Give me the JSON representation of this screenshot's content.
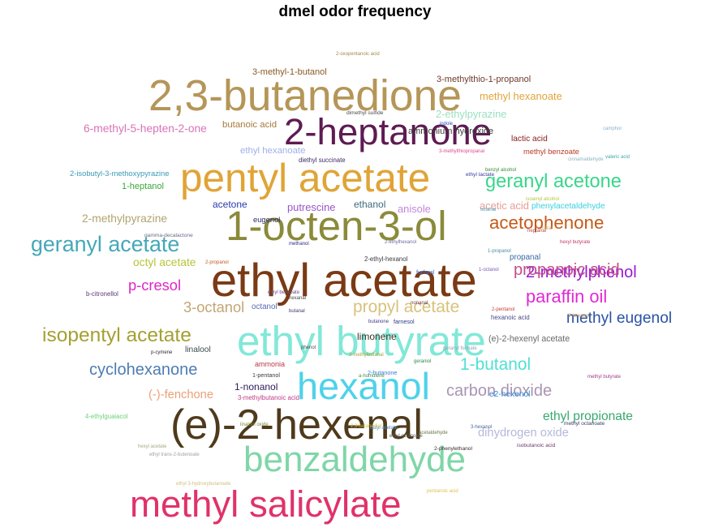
{
  "chart_data": {
    "type": "wordcloud",
    "title": "dmel odor frequency",
    "words": [
      {
        "text": "ethyl acetate",
        "weight": 100,
        "color": "#7a3a14"
      },
      {
        "text": "2,3-butanedione",
        "weight": 92,
        "color": "#b59658"
      },
      {
        "text": "(e)-2-hexenal",
        "weight": 90,
        "color": "#4f3a1c"
      },
      {
        "text": "ethyl butyrate",
        "weight": 88,
        "color": "#82e8d8"
      },
      {
        "text": "1-octen-3-ol",
        "weight": 88,
        "color": "#8a8a3a"
      },
      {
        "text": "pentyl acetate",
        "weight": 85,
        "color": "#e0a436"
      },
      {
        "text": "hexanol",
        "weight": 80,
        "color": "#4fd2ea"
      },
      {
        "text": "2-heptanone",
        "weight": 78,
        "color": "#5e1b52"
      },
      {
        "text": "benzaldehyde",
        "weight": 75,
        "color": "#7fd6a8"
      },
      {
        "text": "methyl salicylate",
        "weight": 78,
        "color": "#e0326a"
      },
      {
        "text": "geranyl acetate",
        "weight": 55,
        "color": "#44a8b8"
      },
      {
        "text": "isopentyl acetate",
        "weight": 50,
        "color": "#a4a034"
      },
      {
        "text": "geranyl acetone",
        "weight": 48,
        "color": "#38d68a"
      },
      {
        "text": "acetophenone",
        "weight": 45,
        "color": "#c65a18"
      },
      {
        "text": "paraffin oil",
        "weight": 44,
        "color": "#e028d4"
      },
      {
        "text": "propyl acetate",
        "weight": 42,
        "color": "#d8c27a"
      },
      {
        "text": "carbon dioxide",
        "weight": 40,
        "color": "#aa94b4"
      },
      {
        "text": "cyclohexanone",
        "weight": 40,
        "color": "#4e7cb4"
      },
      {
        "text": "2-methylphenol",
        "weight": 40,
        "color": "#9a18d2"
      },
      {
        "text": "1-butanol",
        "weight": 42,
        "color": "#52e0d4"
      },
      {
        "text": "propanoic acid",
        "weight": 38,
        "color": "#c44e86"
      },
      {
        "text": "methyl eugenol",
        "weight": 36,
        "color": "#2852a4"
      },
      {
        "text": "3-octanol",
        "weight": 34,
        "color": "#c2a674"
      },
      {
        "text": "p-cresol",
        "weight": 34,
        "color": "#de26c6"
      },
      {
        "text": "ethyl propionate",
        "weight": 28,
        "color": "#38a86e"
      },
      {
        "text": "dihydrogen oxide",
        "weight": 26,
        "color": "#b4b8da"
      },
      {
        "text": "(-)-fenchone",
        "weight": 26,
        "color": "#eaa078"
      },
      {
        "text": "6-methyl-5-hepten-2-one",
        "weight": 24,
        "color": "#d874b8"
      },
      {
        "text": "2-methylpyrazine",
        "weight": 24,
        "color": "#b0a470"
      },
      {
        "text": "octyl acetate",
        "weight": 24,
        "color": "#b8c43a"
      },
      {
        "text": "methyl hexanoate",
        "weight": 22,
        "color": "#e0a43a"
      },
      {
        "text": "2-ethylpyrazine",
        "weight": 22,
        "color": "#9ce0c0"
      },
      {
        "text": "putrescine",
        "weight": 22,
        "color": "#9856c8"
      },
      {
        "text": "anisole",
        "weight": 22,
        "color": "#c486da"
      },
      {
        "text": "acetic acid",
        "weight": 22,
        "color": "#e89c96"
      },
      {
        "text": "ethanol",
        "weight": 20,
        "color": "#3c6a7a"
      },
      {
        "text": "acetone",
        "weight": 20,
        "color": "#2a3aaa"
      },
      {
        "text": "limonene",
        "weight": 20,
        "color": "#3a3424"
      },
      {
        "text": "1-nonanol",
        "weight": 20,
        "color": "#2a1a5a"
      },
      {
        "text": "butanoic acid",
        "weight": 18,
        "color": "#a87a3a"
      },
      {
        "text": "ethyl hexanoate",
        "weight": 18,
        "color": "#a0b0e8"
      },
      {
        "text": "ammonium hydroxide",
        "weight": 17,
        "color": "#3a3a3a"
      },
      {
        "text": "3-methyl-1-butanol",
        "weight": 17,
        "color": "#8a5a24"
      },
      {
        "text": "3-methylthio-1-propanol",
        "weight": 17,
        "color": "#6e3a2a"
      },
      {
        "text": "1-heptanol",
        "weight": 17,
        "color": "#3aa83a"
      },
      {
        "text": "(e)-2-hexenyl acetate",
        "weight": 16,
        "color": "#6a6a6a"
      },
      {
        "text": "e2-hexenol",
        "weight": 15,
        "color": "#2a8ad0"
      },
      {
        "text": "phenylacetaldehyde",
        "weight": 15,
        "color": "#3ad0e0"
      },
      {
        "text": "lactic acid",
        "weight": 15,
        "color": "#8a1a1a"
      },
      {
        "text": "linalool",
        "weight": 15,
        "color": "#3a4a4a"
      },
      {
        "text": "octanol",
        "weight": 14,
        "color": "#5a6ab4"
      },
      {
        "text": "propanal",
        "weight": 14,
        "color": "#3a6aa4"
      },
      {
        "text": "methyl benzoate",
        "weight": 13,
        "color": "#b83a24"
      },
      {
        "text": "2-isobutyl-3-methoxypyrazine",
        "weight": 13,
        "color": "#3a9ab4"
      },
      {
        "text": "eugenol",
        "weight": 13,
        "color": "#2a2a6a"
      },
      {
        "text": "ammonia",
        "weight": 12,
        "color": "#b83a4a"
      },
      {
        "text": "3-methylbutanoic acid",
        "weight": 11,
        "color": "#c23a8a"
      },
      {
        "text": "2-ethyl-hexanol",
        "weight": 11,
        "color": "#3a3a3a"
      },
      {
        "text": "diethyl succinate",
        "weight": 11,
        "color": "#3a2a6a"
      },
      {
        "text": "hexanoic acid",
        "weight": 11,
        "color": "#4a4a8a"
      },
      {
        "text": "b-citronellol",
        "weight": 11,
        "color": "#5a3a7a"
      },
      {
        "text": "4-ethylguaiacol",
        "weight": 11,
        "color": "#6ad07a"
      },
      {
        "text": "1-pentanol",
        "weight": 10,
        "color": "#3a3a3a"
      },
      {
        "text": "2-butanone",
        "weight": 10,
        "color": "#3a7ad0"
      },
      {
        "text": "furfural",
        "weight": 10,
        "color": "#3a6ad0"
      },
      {
        "text": "farnesol",
        "weight": 10,
        "color": "#2a3a8a"
      },
      {
        "text": "dimethyl sulfide",
        "weight": 9,
        "color": "#4a4a4a"
      },
      {
        "text": "2-phenylethanol",
        "weight": 9,
        "color": "#3a2a2a"
      },
      {
        "text": "gamma-decalactone",
        "weight": 9,
        "color": "#6a6a8a"
      },
      {
        "text": "methyl octanoate",
        "weight": 9,
        "color": "#3a3a6a"
      },
      {
        "text": "isobutanoic acid",
        "weight": 9,
        "color": "#6a3a6a"
      },
      {
        "text": "ethyl lactate",
        "weight": 9,
        "color": "#3a3aa0"
      },
      {
        "text": "geranyl formate",
        "weight": 8,
        "color": "#9a9ab4"
      },
      {
        "text": "ethyl 3-hydroxybutanoate",
        "weight": 8,
        "color": "#d0c080"
      },
      {
        "text": "pentanoic acid",
        "weight": 8,
        "color": "#e0c04a"
      },
      {
        "text": "hexyl butyrate",
        "weight": 8,
        "color": "#c23a6a"
      },
      {
        "text": "hexyl acetate",
        "weight": 8,
        "color": "#a8a880"
      },
      {
        "text": "cinnamaldehyde",
        "weight": 8,
        "color": "#8ab4c4"
      },
      {
        "text": "valeric acid",
        "weight": 8,
        "color": "#3aa8a8"
      },
      {
        "text": "ethyl benzoate",
        "weight": 8,
        "color": "#6a4a8a"
      },
      {
        "text": "butyl acetate",
        "weight": 8,
        "color": "#4a8ad0"
      },
      {
        "text": "isoamyl alcohol",
        "weight": 8,
        "color": "#b4c43a"
      },
      {
        "text": "methanol",
        "weight": 8,
        "color": "#2a2a8a"
      },
      {
        "text": "butanal",
        "weight": 8,
        "color": "#3a3a6a"
      },
      {
        "text": "hexanal",
        "weight": 8,
        "color": "#4a4a4a"
      },
      {
        "text": "geraniol",
        "weight": 8,
        "color": "#2a8a4a"
      },
      {
        "text": "p-cymene",
        "weight": 8,
        "color": "#2a2a2a"
      },
      {
        "text": "butanone",
        "weight": 8,
        "color": "#3a3a8a"
      },
      {
        "text": "nonanal",
        "weight": 8,
        "color": "#6a3a3a"
      },
      {
        "text": "1-octanol",
        "weight": 8,
        "color": "#7a5ab4"
      },
      {
        "text": "2-hexanol",
        "weight": 8,
        "color": "#c48a3a"
      },
      {
        "text": "3-hexanol",
        "weight": 8,
        "color": "#4a6a9a"
      },
      {
        "text": "1-propanol",
        "weight": 8,
        "color": "#4a8aa4"
      },
      {
        "text": "2-pentanol",
        "weight": 8,
        "color": "#c4403a"
      },
      {
        "text": "2-propanol",
        "weight": 8,
        "color": "#c45a24"
      },
      {
        "text": "acetaldehyde",
        "weight": 8,
        "color": "#6a7a4a"
      },
      {
        "text": "indole",
        "weight": 8,
        "color": "#2a4ad0"
      },
      {
        "text": "phenol",
        "weight": 8,
        "color": "#4a4a4a"
      },
      {
        "text": "octanal",
        "weight": 8,
        "color": "#4aa0c0"
      },
      {
        "text": "heptanal",
        "weight": 8,
        "color": "#b04a4a"
      },
      {
        "text": "camphor",
        "weight": 8,
        "color": "#8ab0d4"
      },
      {
        "text": "citral",
        "weight": 8,
        "color": "#d0a04a"
      },
      {
        "text": "benzyl alcohol",
        "weight": 8,
        "color": "#3a8a3a"
      },
      {
        "text": "methyl butyrate",
        "weight": 8,
        "color": "#a03a8a"
      },
      {
        "text": "ethyl octanoate",
        "weight": 8,
        "color": "#5a5a5a"
      },
      {
        "text": "a-humulene",
        "weight": 8,
        "color": "#4a8a4a"
      },
      {
        "text": "3-methylbutanal",
        "weight": 8,
        "color": "#a4a43a"
      },
      {
        "text": "2-ethylhexanol",
        "weight": 8,
        "color": "#6a6aa0"
      },
      {
        "text": "2,3-butanediol",
        "weight": 8,
        "color": "#d0c43a"
      },
      {
        "text": "ethyl trans-2-butenoate",
        "weight": 8,
        "color": "#a0a0a0"
      },
      {
        "text": "3-methylthiopropanal",
        "weight": 8,
        "color": "#e04a8a"
      },
      {
        "text": "2-oxopentanoic acid",
        "weight": 8,
        "color": "#a08a4a"
      },
      {
        "text": "linalool oxide",
        "weight": 8,
        "color": "#7a8a3a"
      }
    ]
  }
}
